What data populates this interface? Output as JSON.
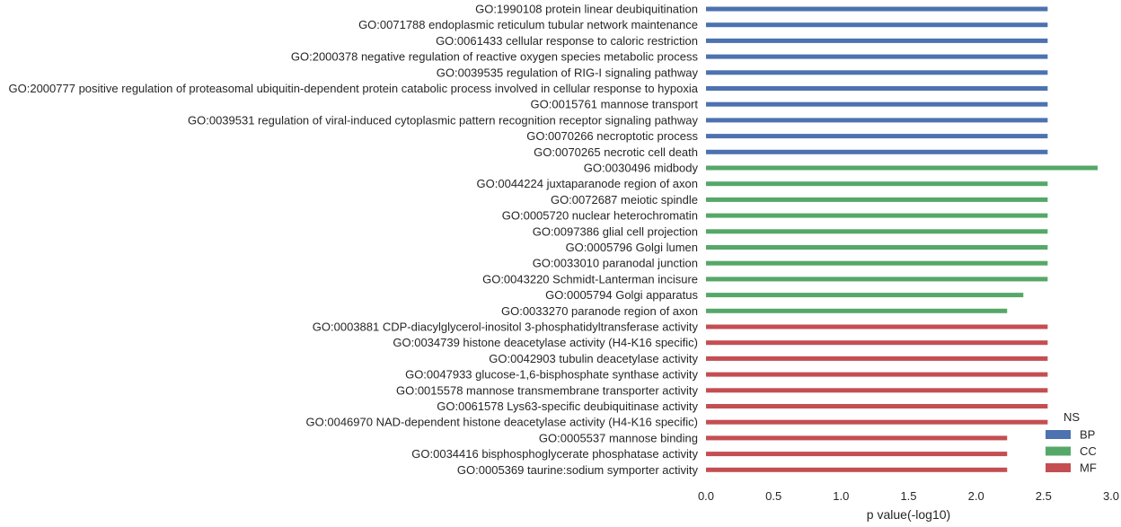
{
  "chart_data": {
    "type": "bar",
    "orientation": "horizontal",
    "xlabel": "p value(-log10)",
    "ylabel": "",
    "xlim": [
      0.0,
      3.0
    ],
    "xticks": [
      "0.0",
      "0.5",
      "1.0",
      "1.5",
      "2.0",
      "2.5",
      "3.0"
    ],
    "grid": false,
    "legend": {
      "title": "NS",
      "placement": "bottom-right",
      "entries": [
        {
          "name": "BP",
          "color": "#4C72B0"
        },
        {
          "name": "CC",
          "color": "#55A868"
        },
        {
          "name": "MF",
          "color": "#C44E52"
        }
      ]
    },
    "groups": [
      "BP",
      "CC",
      "MF"
    ],
    "categories": [
      {
        "label": "GO:1990108 protein linear deubiquitination",
        "value": 2.53,
        "group": "BP"
      },
      {
        "label": "GO:0071788 endoplasmic reticulum tubular network maintenance",
        "value": 2.53,
        "group": "BP"
      },
      {
        "label": "GO:0061433 cellular response to caloric restriction",
        "value": 2.53,
        "group": "BP"
      },
      {
        "label": "GO:2000378 negative regulation of reactive oxygen species metabolic process",
        "value": 2.53,
        "group": "BP"
      },
      {
        "label": "GO:0039535 regulation of RIG-I signaling pathway",
        "value": 2.53,
        "group": "BP"
      },
      {
        "label": "GO:2000777 positive regulation of proteasomal ubiquitin-dependent protein catabolic process involved in cellular response to hypoxia",
        "value": 2.53,
        "group": "BP"
      },
      {
        "label": "GO:0015761 mannose transport",
        "value": 2.53,
        "group": "BP"
      },
      {
        "label": "GO:0039531 regulation of viral-induced cytoplasmic pattern recognition receptor signaling pathway",
        "value": 2.53,
        "group": "BP"
      },
      {
        "label": "GO:0070266 necroptotic process",
        "value": 2.53,
        "group": "BP"
      },
      {
        "label": "GO:0070265 necrotic cell death",
        "value": 2.53,
        "group": "BP"
      },
      {
        "label": "GO:0030496 midbody",
        "value": 2.9,
        "group": "CC"
      },
      {
        "label": "GO:0044224 juxtaparanode region of axon",
        "value": 2.53,
        "group": "CC"
      },
      {
        "label": "GO:0072687 meiotic spindle",
        "value": 2.53,
        "group": "CC"
      },
      {
        "label": "GO:0005720 nuclear heterochromatin",
        "value": 2.53,
        "group": "CC"
      },
      {
        "label": "GO:0097386 glial cell projection",
        "value": 2.53,
        "group": "CC"
      },
      {
        "label": "GO:0005796 Golgi lumen",
        "value": 2.53,
        "group": "CC"
      },
      {
        "label": "GO:0033010 paranodal junction",
        "value": 2.53,
        "group": "CC"
      },
      {
        "label": "GO:0043220 Schmidt-Lanterman incisure",
        "value": 2.53,
        "group": "CC"
      },
      {
        "label": "GO:0005794 Golgi apparatus",
        "value": 2.35,
        "group": "CC"
      },
      {
        "label": "GO:0033270 paranode region of axon",
        "value": 2.23,
        "group": "CC"
      },
      {
        "label": "GO:0003881 CDP-diacylglycerol-inositol 3-phosphatidyltransferase activity",
        "value": 2.53,
        "group": "MF"
      },
      {
        "label": "GO:0034739 histone deacetylase activity (H4-K16 specific)",
        "value": 2.53,
        "group": "MF"
      },
      {
        "label": "GO:0042903 tubulin deacetylase activity",
        "value": 2.53,
        "group": "MF"
      },
      {
        "label": "GO:0047933 glucose-1,6-bisphosphate synthase activity",
        "value": 2.53,
        "group": "MF"
      },
      {
        "label": "GO:0015578 mannose transmembrane transporter activity",
        "value": 2.53,
        "group": "MF"
      },
      {
        "label": "GO:0061578 Lys63-specific deubiquitinase activity",
        "value": 2.53,
        "group": "MF"
      },
      {
        "label": "GO:0046970 NAD-dependent histone deacetylase activity (H4-K16 specific)",
        "value": 2.53,
        "group": "MF"
      },
      {
        "label": "GO:0005537 mannose binding",
        "value": 2.23,
        "group": "MF"
      },
      {
        "label": "GO:0034416 bisphosphoglycerate phosphatase activity",
        "value": 2.23,
        "group": "MF"
      },
      {
        "label": "GO:0005369 taurine:sodium symporter activity",
        "value": 2.23,
        "group": "MF"
      }
    ]
  }
}
